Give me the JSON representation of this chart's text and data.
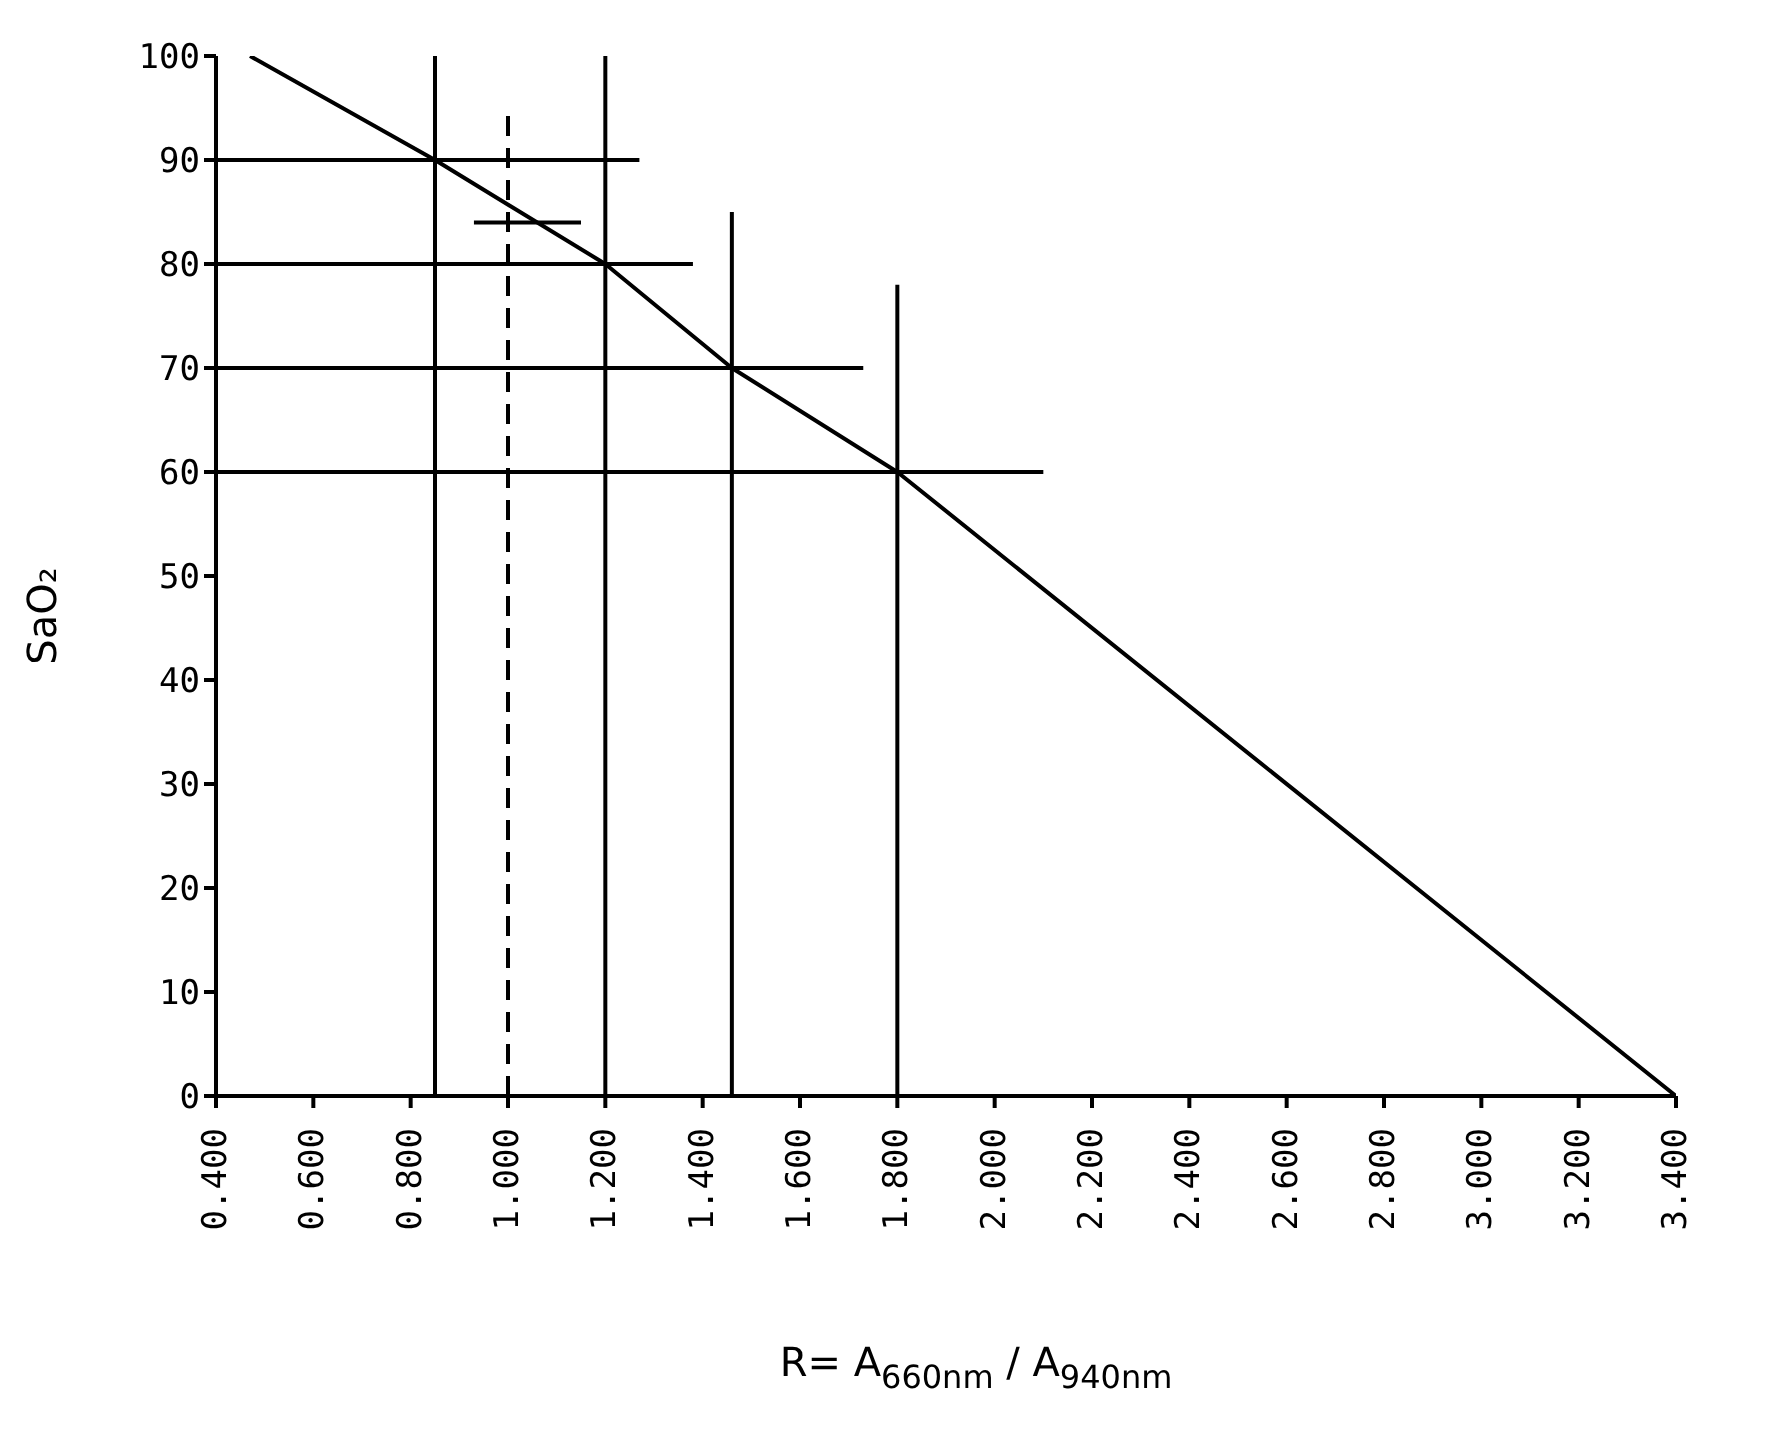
{
  "chart_data": {
    "type": "line",
    "xlabel": "R= A$_{660nm}$ / A$_{940nm}$",
    "ylabel": "SaO₂",
    "xlim": [
      0.4,
      3.4
    ],
    "ylim": [
      0,
      100
    ],
    "xticks": [
      {
        "value": 0.4,
        "label": "0.400"
      },
      {
        "value": 0.6,
        "label": "0.600"
      },
      {
        "value": 0.8,
        "label": "0.800"
      },
      {
        "value": 1.0,
        "label": "1.000"
      },
      {
        "value": 1.2,
        "label": "1.200"
      },
      {
        "value": 1.4,
        "label": "1.400"
      },
      {
        "value": 1.6,
        "label": "1.600"
      },
      {
        "value": 1.8,
        "label": "1.800"
      },
      {
        "value": 2.0,
        "label": "2.000"
      },
      {
        "value": 2.2,
        "label": "2.200"
      },
      {
        "value": 2.4,
        "label": "2.400"
      },
      {
        "value": 2.6,
        "label": "2.600"
      },
      {
        "value": 2.8,
        "label": "2.800"
      },
      {
        "value": 3.0,
        "label": "3.000"
      },
      {
        "value": 3.2,
        "label": "3.200"
      },
      {
        "value": 3.4,
        "label": "3.400"
      }
    ],
    "yticks": [
      0,
      10,
      20,
      30,
      40,
      50,
      60,
      70,
      80,
      90,
      100
    ],
    "grid": false,
    "legend": false,
    "marker": "none",
    "line_style": "solid",
    "series": [
      {
        "color": "#000000",
        "x": [
          0.47,
          0.85,
          1.2,
          1.46,
          1.8,
          3.4
        ],
        "values": [
          100,
          90,
          80,
          70,
          60,
          0
        ]
      },
      {
        "color": "#000000",
        "x": [
          0.4,
          1.27
        ],
        "values": [
          90,
          90
        ]
      },
      {
        "color": "#000000",
        "x": [
          0.93,
          1.15
        ],
        "values": [
          84,
          84
        ]
      },
      {
        "color": "#000000",
        "x": [
          0.4,
          1.38
        ],
        "values": [
          80,
          80
        ]
      },
      {
        "color": "#000000",
        "x": [
          0.4,
          1.73
        ],
        "values": [
          70,
          70
        ]
      },
      {
        "color": "#000000",
        "x": [
          0.4,
          2.1
        ],
        "values": [
          60,
          60
        ]
      },
      {
        "color": "#000000",
        "x": [
          0.85,
          0.85
        ],
        "values": [
          0,
          100
        ]
      },
      {
        "color": "#000000",
        "x": [
          1.0,
          1.0
        ],
        "values": [
          0,
          95
        ],
        "line_style": "dashed"
      },
      {
        "color": "#000000",
        "x": [
          1.2,
          1.2
        ],
        "values": [
          0,
          100
        ]
      },
      {
        "color": "#000000",
        "x": [
          1.46,
          1.46
        ],
        "values": [
          0,
          85
        ]
      },
      {
        "color": "#000000",
        "x": [
          1.8,
          1.8
        ],
        "values": [
          0,
          78
        ]
      }
    ]
  }
}
